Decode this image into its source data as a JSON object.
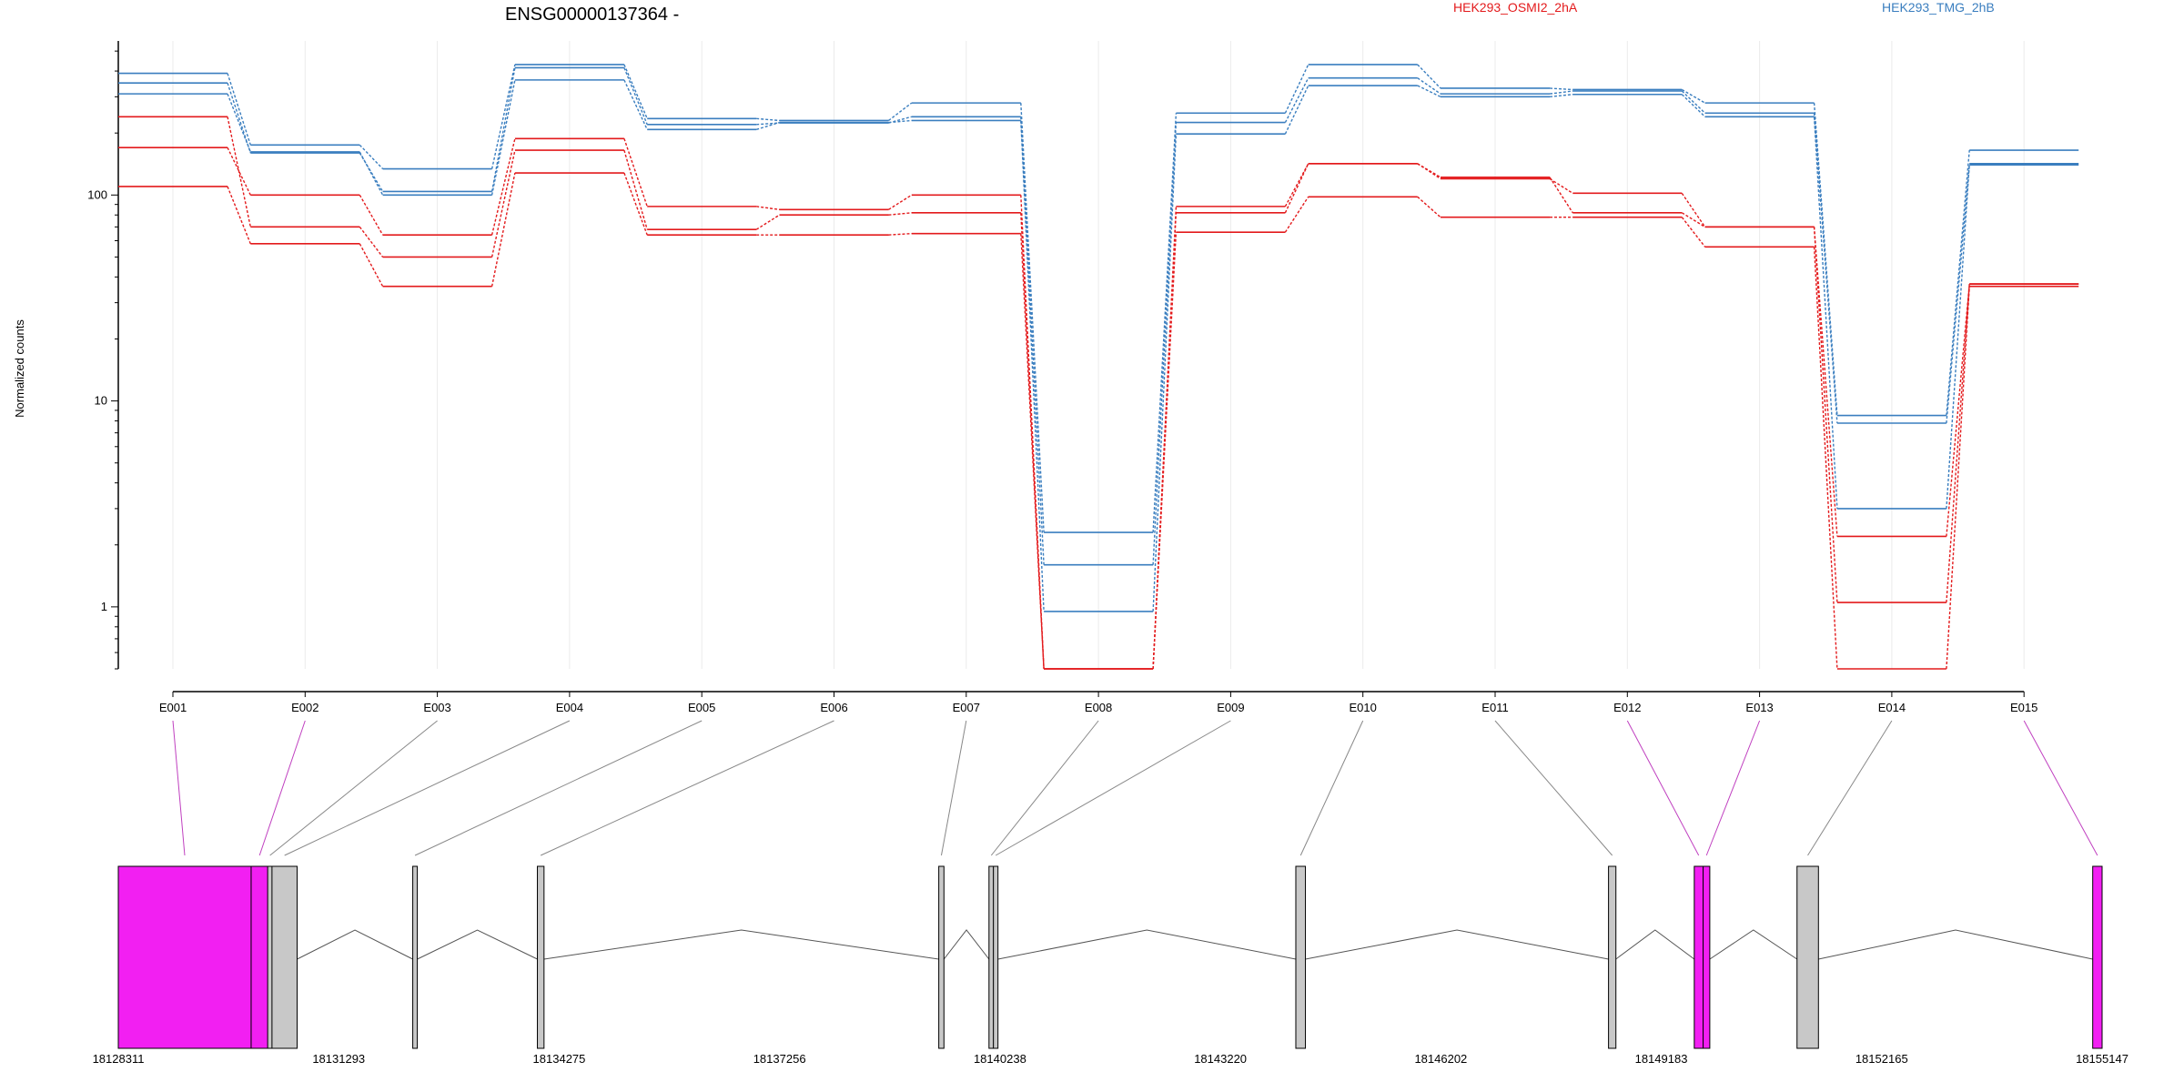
{
  "chart_data": {
    "type": "line",
    "title": "ENSG00000137364 -",
    "ylabel": "Normalized counts",
    "yscale": "log",
    "ylim": [
      0.5,
      560
    ],
    "yticks": [
      {
        "value": 1,
        "label": "1"
      },
      {
        "value": 10,
        "label": "10"
      },
      {
        "value": 100,
        "label": "100"
      }
    ],
    "categories": [
      "E001",
      "E002",
      "E003",
      "E004",
      "E005",
      "E006",
      "E007",
      "E008",
      "E009",
      "E010",
      "E011",
      "E012",
      "E013",
      "E014",
      "E015"
    ],
    "legend": [
      {
        "label": "HEK293_OSMI2_2hA",
        "color": "#e31a1c"
      },
      {
        "label": "HEK293_TMG_2hB",
        "color": "#3a7ebf"
      }
    ],
    "series": [
      {
        "group": "HEK293_OSMI2_2hA",
        "color": "#e31a1c",
        "values": [
          240,
          70,
          50,
          165,
          68,
          80,
          82,
          0.5,
          82,
          142,
          122,
          82,
          70,
          2.2,
          37
        ]
      },
      {
        "group": "HEK293_OSMI2_2hA",
        "color": "#e31a1c",
        "values": [
          170,
          100,
          64,
          188,
          88,
          85,
          100,
          0.5,
          88,
          142,
          120,
          102,
          70,
          1.05,
          37
        ]
      },
      {
        "group": "HEK293_OSMI2_2hA",
        "color": "#e31a1c",
        "values": [
          110,
          58,
          36,
          128,
          64,
          64,
          65,
          0.5,
          66,
          98,
          78,
          78,
          56,
          0.5,
          36
        ]
      },
      {
        "group": "HEK293_TMG_2hB",
        "color": "#3a7ebf",
        "values": [
          390,
          175,
          134,
          430,
          235,
          230,
          280,
          2.3,
          250,
          430,
          330,
          325,
          280,
          8.5,
          165
        ]
      },
      {
        "group": "HEK293_TMG_2hB",
        "color": "#3a7ebf",
        "values": [
          350,
          160,
          104,
          415,
          220,
          224,
          240,
          1.6,
          225,
          370,
          310,
          320,
          250,
          7.8,
          140
        ]
      },
      {
        "group": "HEK293_TMG_2hB",
        "color": "#3a7ebf",
        "values": [
          310,
          162,
          100,
          362,
          208,
          225,
          230,
          0.95,
          198,
          340,
          300,
          308,
          240,
          3.0,
          142
        ]
      }
    ],
    "gene_model": {
      "start": 18128311,
      "end": 18155147,
      "ticks": [
        "18128311",
        "18131293",
        "18134275",
        "18137256",
        "18140238",
        "18143220",
        "18146202",
        "18149183",
        "18152165",
        "18155147"
      ],
      "exon_color_highlight": "#f21ff2",
      "exon_color_default": "#c8c8c8",
      "exons": [
        {
          "id": "E001",
          "start": 18128311,
          "end": 18130108,
          "highlight": true
        },
        {
          "id": "E002",
          "start": 18130108,
          "end": 18130335,
          "highlight": true
        },
        {
          "id": "E003",
          "start": 18130335,
          "end": 18130390,
          "highlight": false
        },
        {
          "id": "E004",
          "start": 18130390,
          "end": 18130730,
          "highlight": false
        },
        {
          "id": "E005",
          "start": 18132300,
          "end": 18132350,
          "highlight": false
        },
        {
          "id": "E006",
          "start": 18133980,
          "end": 18134070,
          "highlight": false
        },
        {
          "id": "E007",
          "start": 18139410,
          "end": 18139480,
          "highlight": false
        },
        {
          "id": "E008",
          "start": 18140090,
          "end": 18140150,
          "highlight": false
        },
        {
          "id": "E009",
          "start": 18140150,
          "end": 18140210,
          "highlight": false
        },
        {
          "id": "E010",
          "start": 18144240,
          "end": 18144370,
          "highlight": false
        },
        {
          "id": "E011",
          "start": 18148470,
          "end": 18148570,
          "highlight": false
        },
        {
          "id": "E012",
          "start": 18149630,
          "end": 18149750,
          "highlight": true
        },
        {
          "id": "E013",
          "start": 18149750,
          "end": 18149840,
          "highlight": true
        },
        {
          "id": "E014",
          "start": 18151020,
          "end": 18151310,
          "highlight": false
        },
        {
          "id": "E015",
          "start": 18155020,
          "end": 18155147,
          "highlight": true
        }
      ]
    }
  }
}
